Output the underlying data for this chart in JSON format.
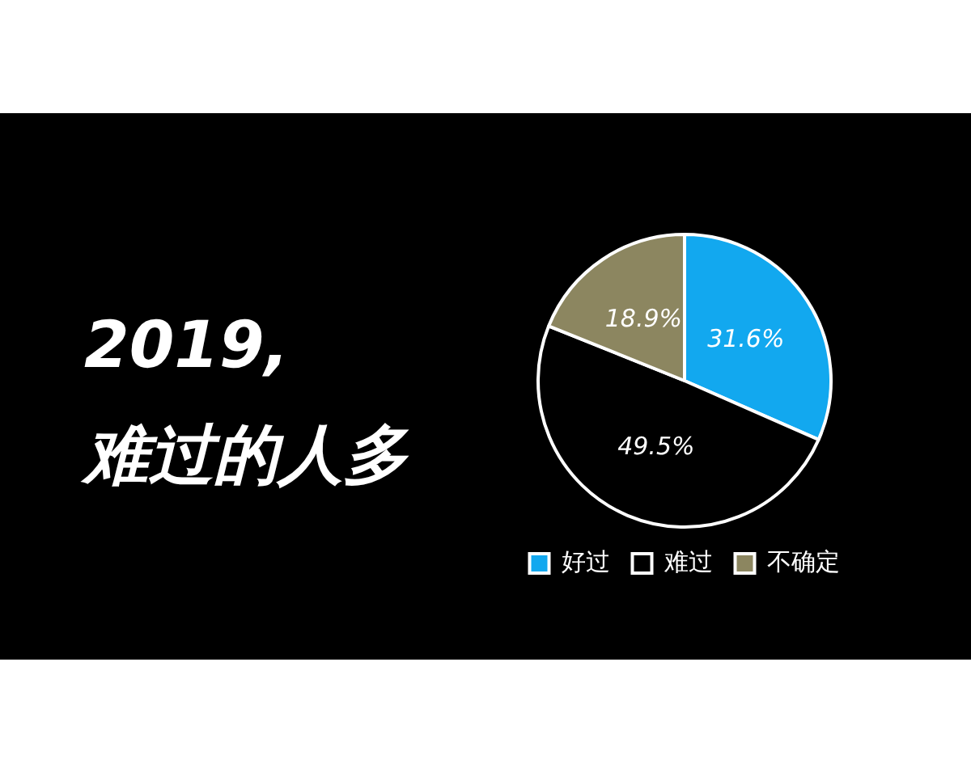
{
  "chart_data": {
    "type": "pie",
    "title": "2019,\n难过的人多",
    "categories": [
      "好过",
      "难过",
      "不确定"
    ],
    "values": [
      31.6,
      49.5,
      18.9
    ],
    "colors": [
      "#12a8ef",
      "#000000",
      "#8c8660"
    ],
    "value_labels": [
      "31.6%",
      "49.5%",
      "18.9%"
    ],
    "legend": "bottom"
  }
}
